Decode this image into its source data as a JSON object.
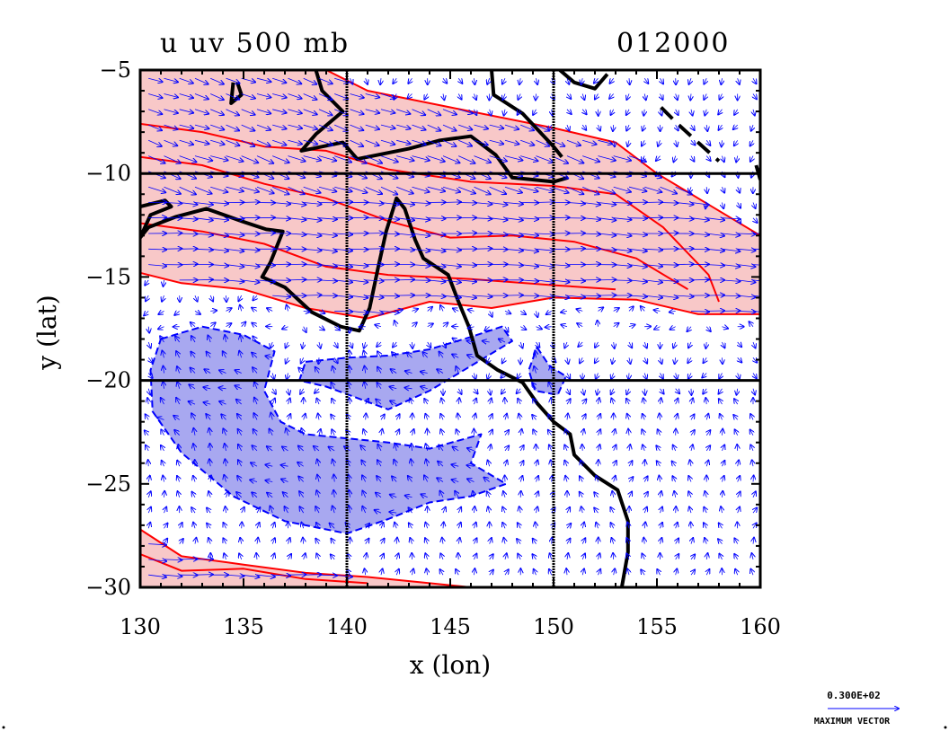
{
  "chart_data": {
    "type": "contour",
    "title_left": "u  uv 500 mb",
    "title_right": "012000",
    "xlabel": "x (lon)",
    "ylabel": "y (lat)",
    "xlim": [
      130,
      160
    ],
    "ylim": [
      -30,
      -5
    ],
    "x_ticks": [
      130,
      135,
      140,
      145,
      150,
      155,
      160
    ],
    "y_ticks": [
      -5,
      -10,
      -15,
      -20,
      -25,
      -30
    ],
    "x_tick_labels": [
      "130",
      "135",
      "140",
      "145",
      "150",
      "155",
      "160"
    ],
    "y_tick_labels": [
      "−5",
      "−10",
      "−15",
      "−20",
      "−25",
      "−30"
    ],
    "grid_lines_x": [
      140,
      150
    ],
    "grid_lines_y": [
      -10,
      -20
    ],
    "vector_legend": {
      "value_label": "0.300E+02",
      "caption": "MAXIMUM VECTOR"
    },
    "colors": {
      "positive_fill": "#f8c8c8",
      "positive_contour": "#ff0000",
      "negative_fill": "#a8a8f0",
      "negative_contour": "#0000ff",
      "vectors": "#0000ff",
      "coastline": "#000000"
    },
    "regions": [
      {
        "name": "westerly-north",
        "sign": "positive",
        "polygon": [
          [
            130,
            -5
          ],
          [
            139,
            -5
          ],
          [
            141,
            -6
          ],
          [
            145,
            -6.8
          ],
          [
            150,
            -7.8
          ],
          [
            153,
            -8.5
          ],
          [
            155,
            -10
          ],
          [
            157.5,
            -11.5
          ],
          [
            160,
            -13
          ],
          [
            160,
            -16.8
          ],
          [
            157,
            -16.8
          ],
          [
            154,
            -16.1
          ],
          [
            150,
            -16
          ],
          [
            147,
            -16.5
          ],
          [
            144,
            -16.2
          ],
          [
            141,
            -17
          ],
          [
            138,
            -16.5
          ],
          [
            135,
            -15.6
          ],
          [
            132,
            -15.3
          ],
          [
            130,
            -14.8
          ]
        ]
      },
      {
        "name": "westerly-south",
        "sign": "positive",
        "polygon": [
          [
            130,
            -27.2
          ],
          [
            132,
            -28.5
          ],
          [
            135,
            -28.9
          ],
          [
            138,
            -29.3
          ],
          [
            141,
            -29.5
          ],
          [
            144,
            -29.8
          ],
          [
            146,
            -30
          ],
          [
            130,
            -30
          ]
        ]
      },
      {
        "name": "easterly-band",
        "sign": "negative",
        "polygon": [
          [
            131,
            -18
          ],
          [
            133,
            -17.4
          ],
          [
            135,
            -17.8
          ],
          [
            136.5,
            -18.6
          ],
          [
            136,
            -20.5
          ],
          [
            136.8,
            -22
          ],
          [
            138,
            -22.6
          ],
          [
            140,
            -22.8
          ],
          [
            142,
            -23
          ],
          [
            144,
            -23.3
          ],
          [
            146.5,
            -22.6
          ],
          [
            146,
            -24
          ],
          [
            147.7,
            -25
          ],
          [
            146,
            -25.6
          ],
          [
            144,
            -25.9
          ],
          [
            142,
            -26.7
          ],
          [
            140,
            -27.4
          ],
          [
            137,
            -26.8
          ],
          [
            134.5,
            -25.6
          ],
          [
            132,
            -23.5
          ],
          [
            130.6,
            -21.5
          ],
          [
            130.5,
            -19.5
          ]
        ]
      },
      {
        "name": "easterly-band-east",
        "sign": "negative",
        "polygon": [
          [
            138,
            -19.1
          ],
          [
            140,
            -18.9
          ],
          [
            142,
            -18.8
          ],
          [
            144,
            -18.5
          ],
          [
            146,
            -17.9
          ],
          [
            147.5,
            -17.4
          ],
          [
            148,
            -18.1
          ],
          [
            146,
            -19.3
          ],
          [
            144,
            -20.5
          ],
          [
            142,
            -21.4
          ],
          [
            139,
            -20.3
          ],
          [
            137.7,
            -20
          ]
        ]
      },
      {
        "name": "easterly-small",
        "sign": "negative",
        "polygon": [
          [
            149.2,
            -18.4
          ],
          [
            149.8,
            -19.3
          ],
          [
            150.6,
            -19.8
          ],
          [
            150.2,
            -20.7
          ],
          [
            149.1,
            -20.5
          ],
          [
            148.8,
            -19.5
          ]
        ]
      }
    ],
    "contours": [
      [
        [
          130,
          -7.6
        ],
        [
          133,
          -8
        ],
        [
          136,
          -8.7
        ],
        [
          139,
          -8.9
        ],
        [
          142,
          -9.8
        ],
        [
          146,
          -10.4
        ],
        [
          150,
          -10.6
        ],
        [
          153,
          -11
        ],
        [
          155.3,
          -12.6
        ],
        [
          157.5,
          -14.9
        ],
        [
          158,
          -16.2
        ]
      ],
      [
        [
          130,
          -9.2
        ],
        [
          133,
          -9.6
        ],
        [
          136,
          -10.5
        ],
        [
          139,
          -11.2
        ],
        [
          142,
          -12.3
        ],
        [
          145,
          -13.1
        ],
        [
          148,
          -13
        ],
        [
          151,
          -13.3
        ],
        [
          154,
          -14.1
        ],
        [
          156.5,
          -15.6
        ]
      ],
      [
        [
          130,
          -12.4
        ],
        [
          133,
          -12.8
        ],
        [
          136,
          -13.4
        ],
        [
          139,
          -14.5
        ],
        [
          142,
          -14.9
        ],
        [
          146,
          -15.1
        ],
        [
          150,
          -15.4
        ],
        [
          153,
          -15.6
        ]
      ],
      [
        [
          130,
          -28.4
        ],
        [
          132,
          -29.2
        ],
        [
          135,
          -29.1
        ],
        [
          138,
          -29.6
        ],
        [
          141,
          -29.8
        ]
      ]
    ],
    "coastlines": [
      [
        [
          138.5,
          -5
        ],
        [
          138.8,
          -6
        ],
        [
          139.8,
          -7
        ],
        [
          138.5,
          -8.1
        ],
        [
          137.8,
          -8.9
        ],
        [
          139.8,
          -8.5
        ],
        [
          140.5,
          -9.3
        ],
        [
          143,
          -8.8
        ],
        [
          144.5,
          -8.4
        ],
        [
          146,
          -8.2
        ],
        [
          147.2,
          -9.1
        ],
        [
          148,
          -10.2
        ],
        [
          150,
          -10.4
        ],
        [
          150.7,
          -10.2
        ]
      ],
      [
        [
          147,
          -5
        ],
        [
          147.1,
          -6.2
        ],
        [
          148.5,
          -7.1
        ],
        [
          150,
          -8.7
        ],
        [
          150.4,
          -9.2
        ]
      ],
      [
        [
          130,
          -11.6
        ],
        [
          131.2,
          -11.3
        ],
        [
          131.5,
          -11.6
        ],
        [
          130.5,
          -12
        ],
        [
          130,
          -13.1
        ],
        [
          130.4,
          -12.6
        ],
        [
          131.7,
          -12.1
        ],
        [
          133.2,
          -11.7
        ],
        [
          134.9,
          -12.3
        ],
        [
          136.1,
          -12.7
        ],
        [
          136.9,
          -12.8
        ],
        [
          136.3,
          -14.3
        ],
        [
          135.9,
          -15
        ],
        [
          137,
          -15.5
        ],
        [
          138.3,
          -16.7
        ],
        [
          139.7,
          -17.4
        ],
        [
          140.6,
          -17.6
        ],
        [
          141.1,
          -16.5
        ],
        [
          141.5,
          -14.6
        ],
        [
          141.9,
          -12.8
        ],
        [
          142.4,
          -11.2
        ],
        [
          142.8,
          -11.7
        ],
        [
          143.3,
          -13.2
        ],
        [
          143.7,
          -14.1
        ],
        [
          144.9,
          -14.9
        ],
        [
          145.4,
          -16.2
        ],
        [
          145.9,
          -17.4
        ],
        [
          146.3,
          -18.8
        ],
        [
          147.3,
          -19.5
        ],
        [
          148.5,
          -20.1
        ],
        [
          149.2,
          -21.1
        ],
        [
          150,
          -22
        ],
        [
          150.8,
          -22.6
        ],
        [
          151,
          -23.6
        ],
        [
          152,
          -24.6
        ],
        [
          153.1,
          -25.3
        ],
        [
          153.6,
          -26.8
        ],
        [
          153.6,
          -28.3
        ],
        [
          153.3,
          -30
        ]
      ],
      [
        [
          150.3,
          -5
        ],
        [
          151,
          -5.6
        ],
        [
          152,
          -5.9
        ],
        [
          152.6,
          -5.2
        ]
      ],
      [
        [
          159.8,
          -9.6
        ],
        [
          160,
          -10.3
        ]
      ],
      [
        [
          134.5,
          -5.6
        ],
        [
          134.4,
          -6.6
        ],
        [
          134.9,
          -6.2
        ],
        [
          134.7,
          -5.6
        ]
      ]
    ],
    "coastlines_dashed": [
      [
        [
          155.2,
          -6.8
        ],
        [
          156,
          -7.6
        ],
        [
          157.1,
          -8.6
        ],
        [
          158,
          -9.4
        ]
      ]
    ]
  }
}
